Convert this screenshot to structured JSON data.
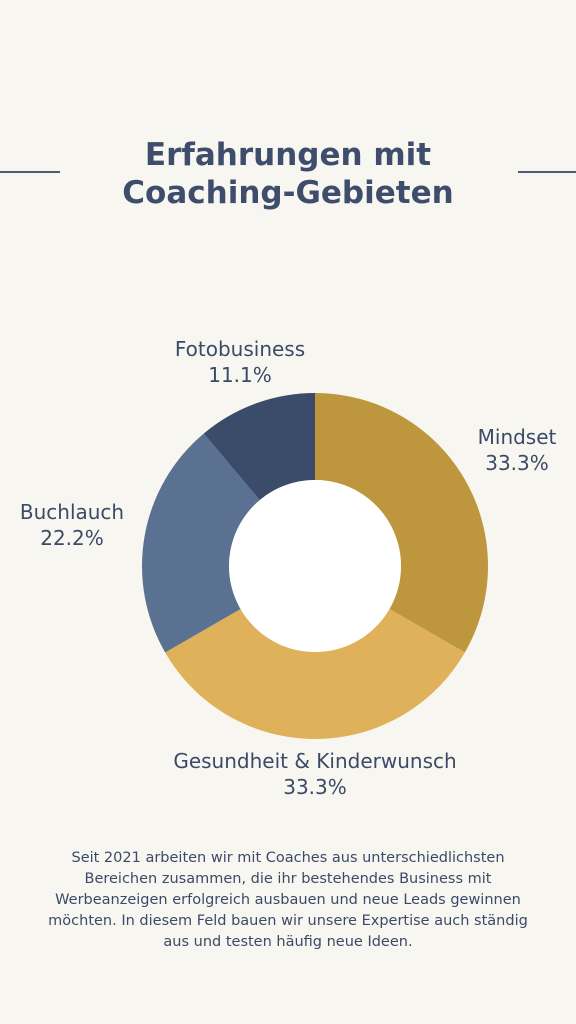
{
  "page": {
    "title_line1": "Erfahrungen mit",
    "title_line2": "Coaching-Gebieten",
    "description": "Seit 2021 arbeiten wir mit Coaches aus unterschiedlichsten Bereichen zusammen, die ihr bestehendes Business mit Werbeanzeigen erfolgreich ausbauen und neue Leads gewinnen möchten. In diesem Feld bauen wir unsere Expertise auch ständig aus und testen häufig neue Ideen."
  },
  "chart_data": {
    "type": "pie",
    "variant": "donut",
    "title": "Erfahrungen mit Coaching-Gebieten",
    "slices": [
      {
        "label": "Mindset",
        "percent_label": "33.3%",
        "value": 33.3,
        "color": "#be963d"
      },
      {
        "label": "Gesundheit & Kinderwunsch",
        "percent_label": "33.3%",
        "value": 33.3,
        "color": "#dfb15a"
      },
      {
        "label": "Buchlauch",
        "percent_label": "22.2%",
        "value": 22.2,
        "color": "#5b7191"
      },
      {
        "label": "Fotobusiness",
        "percent_label": "11.1%",
        "value": 11.1,
        "color": "#3b4c6a"
      }
    ],
    "start_angle_deg": 0,
    "direction": "clockwise",
    "legend": "none",
    "label_color": "#3b4a66",
    "hole_color": "#ffffff"
  }
}
